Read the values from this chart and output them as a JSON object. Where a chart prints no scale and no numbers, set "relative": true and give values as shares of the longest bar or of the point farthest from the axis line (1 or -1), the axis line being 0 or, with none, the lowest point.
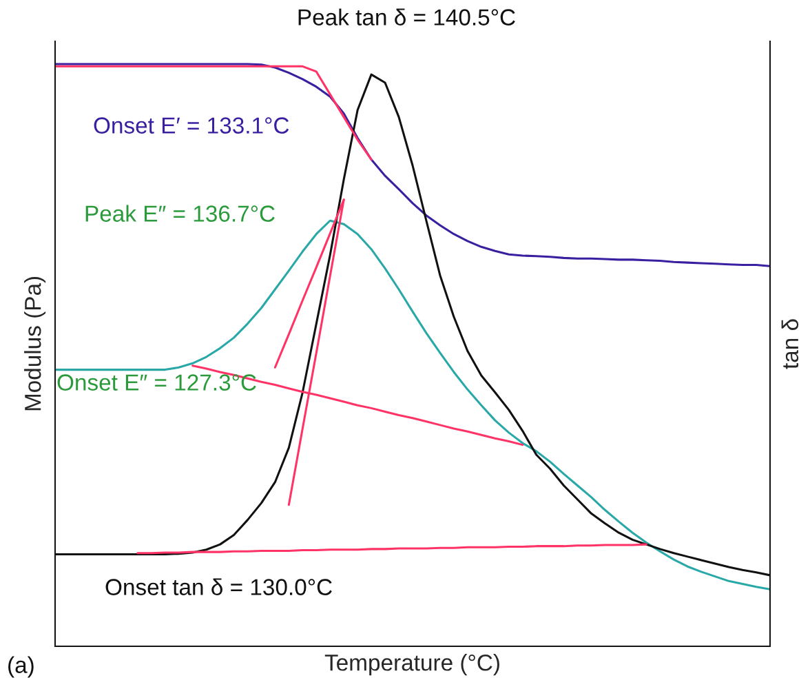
{
  "chart_data": {
    "type": "line",
    "relative": true,
    "xlabel": "Temperature (°C)",
    "ylabel": "Modulus (Pa)",
    "y2label": "tan δ",
    "categories": [
      null,
      null,
      null,
      null,
      null,
      null,
      null,
      null,
      null,
      null,
      null,
      null,
      null,
      null,
      null,
      null,
      null,
      null,
      null,
      null,
      null,
      null,
      null,
      null,
      null,
      null,
      null,
      null,
      null,
      null,
      null,
      null,
      null,
      null,
      null,
      null,
      null,
      null,
      null,
      null,
      null,
      null,
      null,
      null,
      null,
      null,
      null,
      null,
      null,
      null,
      null,
      null,
      null
    ],
    "series": [
      {
        "color": "#3a1fa0",
        "values": [
          1.0,
          1.0,
          1.0,
          1.0,
          1.0,
          1.0,
          1.0,
          1.0,
          1.0,
          1.0,
          1.0,
          1.0,
          1.0,
          1.0,
          1.0,
          0.999,
          0.994,
          0.985,
          0.974,
          0.961,
          0.944,
          0.915,
          0.873,
          0.836,
          0.808,
          0.785,
          0.761,
          0.74,
          0.723,
          0.708,
          0.696,
          0.686,
          0.679,
          0.673,
          0.671,
          0.67,
          0.669,
          0.667,
          0.666,
          0.666,
          0.665,
          0.664,
          0.664,
          0.663,
          0.662,
          0.66,
          0.659,
          0.658,
          0.657,
          0.656,
          0.655,
          0.655,
          0.653
        ]
      },
      {
        "color": "#2aa8a8",
        "values": [
          0.475,
          0.475,
          0.475,
          0.475,
          0.475,
          0.475,
          0.475,
          0.475,
          0.475,
          0.479,
          0.486,
          0.497,
          0.512,
          0.53,
          0.554,
          0.581,
          0.613,
          0.645,
          0.678,
          0.708,
          0.731,
          0.725,
          0.708,
          0.682,
          0.649,
          0.613,
          0.575,
          0.538,
          0.504,
          0.471,
          0.441,
          0.414,
          0.388,
          0.367,
          0.349,
          0.335,
          0.317,
          0.296,
          0.276,
          0.256,
          0.234,
          0.214,
          0.195,
          0.178,
          0.163,
          0.149,
          0.137,
          0.128,
          0.12,
          0.112,
          0.107,
          0.102,
          0.098
        ]
      },
      {
        "color": "#111111",
        "values": [
          0.158,
          0.158,
          0.158,
          0.158,
          0.158,
          0.158,
          0.158,
          0.158,
          0.158,
          0.159,
          0.161,
          0.166,
          0.175,
          0.191,
          0.217,
          0.246,
          0.282,
          0.341,
          0.436,
          0.554,
          0.672,
          0.802,
          0.921,
          0.982,
          0.968,
          0.909,
          0.826,
          0.731,
          0.637,
          0.566,
          0.507,
          0.465,
          0.436,
          0.406,
          0.37,
          0.329,
          0.305,
          0.276,
          0.252,
          0.228,
          0.211,
          0.195,
          0.183,
          0.175,
          0.167,
          0.16,
          0.154,
          0.148,
          0.142,
          0.136,
          0.131,
          0.127,
          0.122
        ]
      },
      {
        "color": "#ff3366",
        "values": [
          0.996,
          0.996,
          0.996,
          0.996,
          0.996,
          0.996,
          0.996,
          0.996,
          0.996,
          0.996,
          0.996,
          0.996,
          0.996,
          0.996,
          0.996,
          0.996,
          0.996,
          0.996,
          0.996,
          0.987,
          0.948,
          0.909,
          0.87,
          0.836,
          null,
          null,
          null,
          null,
          null,
          null,
          null,
          null,
          null,
          null,
          null,
          null,
          null,
          null,
          null,
          null,
          null,
          null,
          null,
          null,
          null,
          null,
          null,
          null,
          null,
          null,
          null,
          null,
          null
        ]
      },
      {
        "color": "#ff3366",
        "values": [
          null,
          null,
          null,
          null,
          null,
          null,
          null,
          null,
          null,
          null,
          0.482,
          0.477,
          0.471,
          0.466,
          0.46,
          0.454,
          0.449,
          0.443,
          0.437,
          0.432,
          0.426,
          0.42,
          0.414,
          0.409,
          0.403,
          0.397,
          0.392,
          0.386,
          0.38,
          0.374,
          0.369,
          0.363,
          0.357,
          0.352,
          0.346,
          null,
          null,
          null,
          null,
          null,
          null,
          null,
          null,
          null,
          null,
          null,
          null,
          null,
          null,
          null,
          null,
          null,
          null
        ]
      },
      {
        "color": "#ff3366",
        "values": [
          null,
          null,
          null,
          null,
          null,
          null,
          null,
          null,
          null,
          null,
          null,
          null,
          null,
          null,
          null,
          null,
          0.479,
          0.536,
          0.594,
          0.651,
          0.709,
          0.767,
          null,
          null,
          null,
          null,
          null,
          null,
          null,
          null,
          null,
          null,
          null,
          null,
          null,
          null,
          null,
          null,
          null,
          null,
          null,
          null,
          null,
          null,
          null,
          null,
          null,
          null,
          null,
          null,
          null,
          null,
          null
        ]
      },
      {
        "color": "#ff3366",
        "values": [
          null,
          null,
          null,
          null,
          null,
          null,
          null,
          null,
          null,
          null,
          null,
          null,
          null,
          null,
          null,
          null,
          null,
          0.243,
          0.374,
          0.504,
          0.636,
          0.767,
          null,
          null,
          null,
          null,
          null,
          null,
          null,
          null,
          null,
          null,
          null,
          null,
          null,
          null,
          null,
          null,
          null,
          null,
          null,
          null,
          null,
          null,
          null,
          null,
          null,
          null,
          null,
          null,
          null,
          null,
          null
        ]
      },
      {
        "color": "#ff3366",
        "values": [
          null,
          null,
          null,
          null,
          null,
          null,
          0.16,
          0.16,
          0.161,
          0.161,
          0.162,
          0.162,
          0.162,
          0.163,
          0.163,
          0.164,
          0.164,
          0.164,
          0.165,
          0.165,
          0.166,
          0.166,
          0.166,
          0.167,
          0.167,
          0.168,
          0.168,
          0.168,
          0.169,
          0.169,
          0.17,
          0.17,
          0.17,
          0.171,
          0.171,
          0.172,
          0.172,
          0.172,
          0.173,
          0.173,
          0.174,
          0.174,
          0.174,
          0.175,
          null,
          null,
          null,
          null,
          null,
          null,
          null,
          null,
          null
        ]
      }
    ],
    "annotations": [
      "Peak tan δ = 140.5°C",
      "Onset E′ = 133.1°C",
      "Peak E″ = 136.7°C",
      "Onset E″ = 127.3°C",
      "Onset tan δ = 130.0°C",
      "(a)"
    ],
    "legend": false,
    "tick_labels": false
  }
}
